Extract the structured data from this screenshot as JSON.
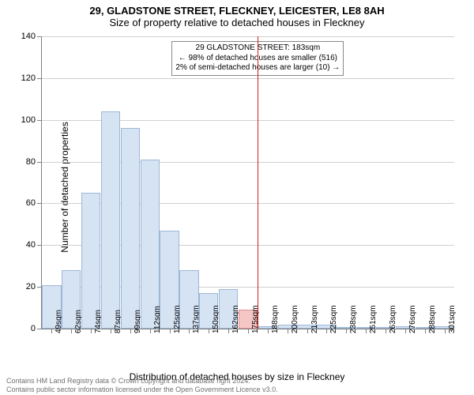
{
  "header": {
    "title_main": "29, GLADSTONE STREET, FLECKNEY, LEICESTER, LE8 8AH",
    "title_sub": "Size of property relative to detached houses in Fleckney"
  },
  "chart": {
    "type": "histogram",
    "y_label": "Number of detached properties",
    "x_label": "Distribution of detached houses by size in Fleckney",
    "y_ticks": [
      0,
      20,
      40,
      60,
      80,
      100,
      120,
      140
    ],
    "ylim": [
      0,
      140
    ],
    "x_categories": [
      "49sqm",
      "62sqm",
      "74sqm",
      "87sqm",
      "99sqm",
      "112sqm",
      "125sqm",
      "137sqm",
      "150sqm",
      "162sqm",
      "175sqm",
      "188sqm",
      "200sqm",
      "213sqm",
      "225sqm",
      "238sqm",
      "251sqm",
      "263sqm",
      "276sqm",
      "288sqm",
      "301sqm"
    ],
    "bars": [
      {
        "value": 21,
        "highlight": false
      },
      {
        "value": 28,
        "highlight": false
      },
      {
        "value": 65,
        "highlight": false
      },
      {
        "value": 104,
        "highlight": false
      },
      {
        "value": 96,
        "highlight": false
      },
      {
        "value": 81,
        "highlight": false
      },
      {
        "value": 47,
        "highlight": false
      },
      {
        "value": 28,
        "highlight": false
      },
      {
        "value": 17,
        "highlight": false
      },
      {
        "value": 19,
        "highlight": false
      },
      {
        "value": 9,
        "highlight": true
      },
      {
        "value": 1,
        "highlight": false
      },
      {
        "value": 2,
        "highlight": false
      },
      {
        "value": 2,
        "highlight": false
      },
      {
        "value": 2,
        "highlight": false
      },
      {
        "value": 0,
        "highlight": false
      },
      {
        "value": 0,
        "highlight": false
      },
      {
        "value": 0,
        "highlight": false
      },
      {
        "value": 1,
        "highlight": false
      },
      {
        "value": 0,
        "highlight": false
      },
      {
        "value": 1,
        "highlight": false
      }
    ],
    "bar_color": "#d6e3f3",
    "bar_border": "#9db7d6",
    "highlight_color": "#f5c6c6",
    "highlight_border": "#e09090",
    "grid_color": "#d0d0d0",
    "marker_color": "#cc2222",
    "marker_after_index": 10,
    "annotation": {
      "line1": "29 GLADSTONE STREET: 183sqm",
      "line2": "← 98% of detached houses are smaller (516)",
      "line3": "2% of semi-detached houses are larger (10) →"
    }
  },
  "footer": {
    "line1": "Contains HM Land Registry data © Crown copyright and database right 2024.",
    "line2": "Contains public sector information licensed under the Open Government Licence v3.0."
  }
}
